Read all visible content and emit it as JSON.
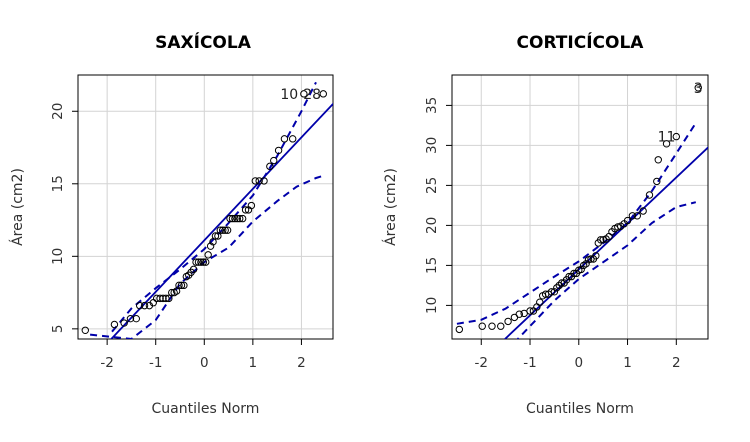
{
  "chart_data": [
    {
      "type": "scatter",
      "title": "SAXÍCOLA",
      "xlabel": "Cuantiles Norm",
      "ylabel": "Área (cm2)",
      "xlim": [
        -2.6,
        2.65
      ],
      "ylim": [
        4.3,
        22.5
      ],
      "xticks": [
        -2,
        -1,
        0,
        1,
        2
      ],
      "yticks": [
        5,
        10,
        15,
        20
      ],
      "grid": true,
      "colors": {
        "points": "#000000",
        "lines": "#0000aa",
        "grid": "#d3d3d3"
      },
      "points": [
        [
          -2.45,
          4.9
        ],
        [
          -1.85,
          5.3
        ],
        [
          -1.65,
          5.4
        ],
        [
          -1.52,
          5.7
        ],
        [
          -1.4,
          5.7
        ],
        [
          -1.33,
          6.6
        ],
        [
          -1.23,
          6.6
        ],
        [
          -1.13,
          6.6
        ],
        [
          -1.05,
          6.8
        ],
        [
          -0.98,
          7.1
        ],
        [
          -0.91,
          7.1
        ],
        [
          -0.85,
          7.1
        ],
        [
          -0.79,
          7.1
        ],
        [
          -0.73,
          7.1
        ],
        [
          -0.67,
          7.5
        ],
        [
          -0.62,
          7.5
        ],
        [
          -0.57,
          7.6
        ],
        [
          -0.52,
          8.0
        ],
        [
          -0.47,
          8.0
        ],
        [
          -0.42,
          8.0
        ],
        [
          -0.37,
          8.6
        ],
        [
          -0.32,
          8.7
        ],
        [
          -0.27,
          8.9
        ],
        [
          -0.22,
          9.1
        ],
        [
          -0.17,
          9.6
        ],
        [
          -0.12,
          9.6
        ],
        [
          -0.07,
          9.6
        ],
        [
          -0.02,
          9.6
        ],
        [
          0.03,
          9.6
        ],
        [
          0.08,
          10.1
        ],
        [
          0.13,
          10.7
        ],
        [
          0.18,
          11.0
        ],
        [
          0.23,
          11.4
        ],
        [
          0.28,
          11.4
        ],
        [
          0.33,
          11.8
        ],
        [
          0.38,
          11.8
        ],
        [
          0.43,
          11.8
        ],
        [
          0.48,
          11.8
        ],
        [
          0.53,
          12.6
        ],
        [
          0.58,
          12.6
        ],
        [
          0.63,
          12.6
        ],
        [
          0.68,
          12.6
        ],
        [
          0.73,
          12.6
        ],
        [
          0.79,
          12.6
        ],
        [
          0.85,
          13.2
        ],
        [
          0.91,
          13.2
        ],
        [
          0.97,
          13.5
        ],
        [
          1.05,
          15.2
        ],
        [
          1.13,
          15.2
        ],
        [
          1.23,
          15.2
        ],
        [
          1.35,
          16.2
        ],
        [
          1.43,
          16.6
        ],
        [
          1.53,
          17.3
        ],
        [
          1.65,
          18.1
        ],
        [
          1.82,
          18.1
        ],
        [
          2.05,
          21.2
        ],
        [
          2.45,
          21.2
        ]
      ],
      "reference_line": {
        "intercept": 11.1,
        "slope": 3.55
      },
      "confidence_band_upper": [
        [
          -1.9,
          4.8
        ],
        [
          -1.5,
          6.4
        ],
        [
          -1.0,
          7.8
        ],
        [
          -0.5,
          9.1
        ],
        [
          0.0,
          10.5
        ],
        [
          0.5,
          12.3
        ],
        [
          1.0,
          14.2
        ],
        [
          1.5,
          16.9
        ],
        [
          2.0,
          20.0
        ],
        [
          2.3,
          22.0
        ]
      ],
      "confidence_band_lower": [
        [
          -2.35,
          4.6
        ],
        [
          -1.5,
          4.3
        ],
        [
          -1.0,
          5.6
        ],
        [
          -0.5,
          8.1
        ],
        [
          0.0,
          9.6
        ],
        [
          0.5,
          10.6
        ],
        [
          1.0,
          12.4
        ],
        [
          1.5,
          13.8
        ],
        [
          1.9,
          14.8
        ],
        [
          2.3,
          15.4
        ],
        [
          2.5,
          15.6
        ]
      ],
      "annotations": [
        {
          "text": "10",
          "x": 1.75,
          "y": 21.2
        },
        {
          "text": "28",
          "x": 2.22,
          "y": 21.2
        }
      ]
    },
    {
      "type": "scatter",
      "title": "CORTICÍCOLA",
      "xlabel": "Cuantiles Norm",
      "ylabel": "Área (cm2)",
      "xlim": [
        -2.6,
        2.65
      ],
      "ylim": [
        5.8,
        38.8
      ],
      "xticks": [
        -2,
        -1,
        0,
        1,
        2
      ],
      "yticks": [
        10,
        15,
        20,
        25,
        30,
        35
      ],
      "grid": true,
      "colors": {
        "points": "#000000",
        "lines": "#0000aa",
        "grid": "#d3d3d3"
      },
      "points": [
        [
          -2.45,
          7.0
        ],
        [
          -1.98,
          7.4
        ],
        [
          -1.78,
          7.4
        ],
        [
          -1.6,
          7.4
        ],
        [
          -1.45,
          8.0
        ],
        [
          -1.32,
          8.5
        ],
        [
          -1.22,
          8.9
        ],
        [
          -1.12,
          9.0
        ],
        [
          -1.0,
          9.3
        ],
        [
          -0.93,
          9.3
        ],
        [
          -0.86,
          9.8
        ],
        [
          -0.8,
          10.4
        ],
        [
          -0.74,
          11.2
        ],
        [
          -0.68,
          11.4
        ],
        [
          -0.62,
          11.4
        ],
        [
          -0.56,
          11.7
        ],
        [
          -0.5,
          11.7
        ],
        [
          -0.45,
          12.2
        ],
        [
          -0.4,
          12.5
        ],
        [
          -0.35,
          12.8
        ],
        [
          -0.3,
          12.8
        ],
        [
          -0.25,
          13.2
        ],
        [
          -0.2,
          13.6
        ],
        [
          -0.15,
          13.6
        ],
        [
          -0.1,
          14.0
        ],
        [
          -0.05,
          14.0
        ],
        [
          0.0,
          14.4
        ],
        [
          0.05,
          14.5
        ],
        [
          0.1,
          15.0
        ],
        [
          0.15,
          15.2
        ],
        [
          0.2,
          15.7
        ],
        [
          0.25,
          15.8
        ],
        [
          0.3,
          15.8
        ],
        [
          0.35,
          16.2
        ],
        [
          0.4,
          17.8
        ],
        [
          0.45,
          18.2
        ],
        [
          0.5,
          18.2
        ],
        [
          0.56,
          18.3
        ],
        [
          0.62,
          18.6
        ],
        [
          0.68,
          19.2
        ],
        [
          0.74,
          19.6
        ],
        [
          0.8,
          19.8
        ],
        [
          0.86,
          19.9
        ],
        [
          0.93,
          20.2
        ],
        [
          1.0,
          20.6
        ],
        [
          1.1,
          21.2
        ],
        [
          1.2,
          21.2
        ],
        [
          1.32,
          21.8
        ],
        [
          1.45,
          23.8
        ],
        [
          1.6,
          25.5
        ],
        [
          1.63,
          28.2
        ],
        [
          1.8,
          30.2
        ],
        [
          2.0,
          31.1
        ],
        [
          2.45,
          37.2
        ]
      ],
      "reference_line": {
        "intercept": 14.5,
        "slope": 5.75
      },
      "confidence_band_upper": [
        [
          -2.5,
          7.7
        ],
        [
          -2.0,
          8.2
        ],
        [
          -1.5,
          9.6
        ],
        [
          -1.0,
          11.6
        ],
        [
          -0.5,
          13.6
        ],
        [
          0.0,
          15.5
        ],
        [
          0.5,
          17.8
        ],
        [
          1.0,
          20.3
        ],
        [
          1.5,
          24.3
        ],
        [
          2.0,
          29.0
        ],
        [
          2.4,
          32.8
        ]
      ],
      "confidence_band_lower": [
        [
          -1.5,
          4.2
        ],
        [
          -1.0,
          7.4
        ],
        [
          -0.5,
          10.6
        ],
        [
          0.0,
          13.3
        ],
        [
          0.5,
          15.4
        ],
        [
          1.0,
          17.5
        ],
        [
          1.5,
          20.3
        ],
        [
          2.0,
          22.3
        ],
        [
          2.4,
          22.9
        ]
      ],
      "annotations": [
        {
          "text": "11",
          "x": 1.8,
          "y": 31.1
        },
        {
          "text": "3",
          "x": 2.45,
          "y": 37.2
        }
      ]
    }
  ]
}
